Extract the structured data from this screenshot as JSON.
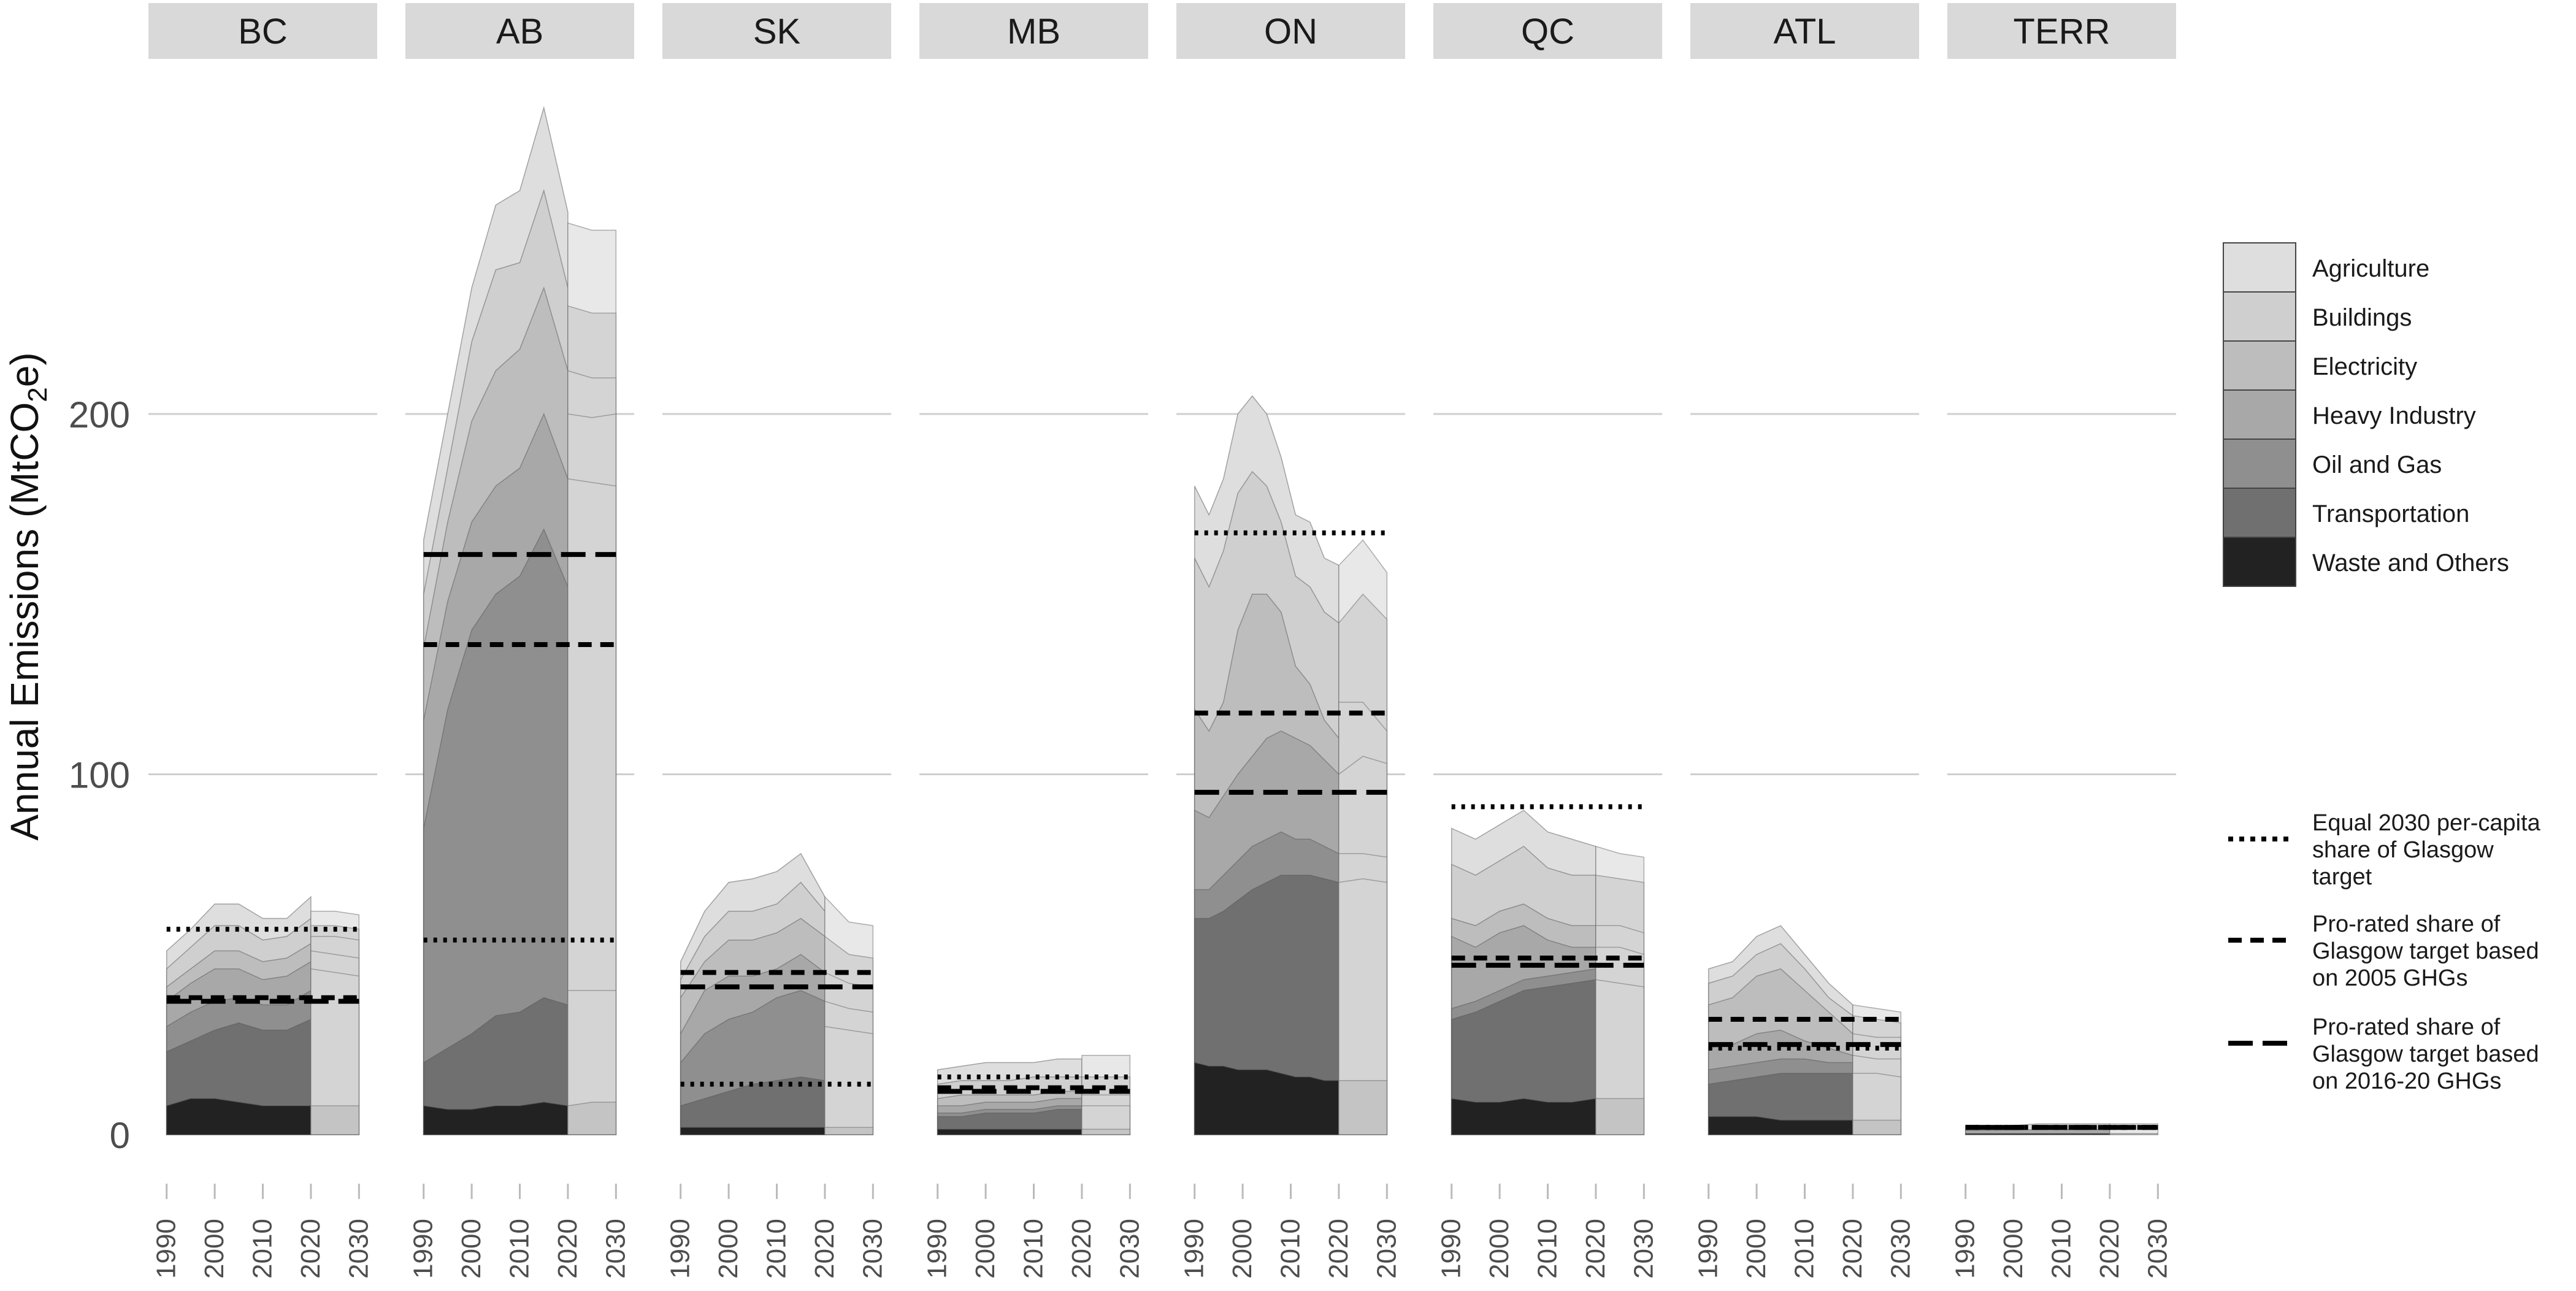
{
  "chart_data": {
    "type": "area",
    "ylabel": "Annual Emissions",
    "ylabel_unit": "(MtCO",
    "ylabel_unit_sub": "2",
    "ylabel_unit_end": "e)",
    "yticks": [
      0,
      100,
      200
    ],
    "ylim": [
      0,
      285
    ],
    "xlim": [
      1988,
      2032
    ],
    "xticks": [
      1990,
      2000,
      2010,
      2020,
      2030
    ],
    "grid": true,
    "legend_position": "right",
    "colors": {
      "Waste and Others": "#222222",
      "Transportation": "#707070",
      "Oil and Gas": "#8f8f8f",
      "Heavy Industry": "#a8a8a8",
      "Electricity": "#bdbdbd",
      "Buildings": "#cfcfcf",
      "Agriculture": "#dedede",
      "projection_top": "#e8e8e8",
      "projection_base": "#c4c4c4",
      "strip": "#d9d9d9",
      "grid": "#cfcfcf"
    },
    "categories": [
      "Waste and Others",
      "Transportation",
      "Oil and Gas",
      "Heavy Industry",
      "Electricity",
      "Buildings",
      "Agriculture"
    ],
    "legend": {
      "sectors_order": [
        "Agriculture",
        "Buildings",
        "Electricity",
        "Heavy Industry",
        "Oil and Gas",
        "Transportation",
        "Waste and Others"
      ],
      "targets": [
        {
          "style": "dotted",
          "lines": [
            "Equal 2030 per-capita",
            "share of Glasgow",
            "target"
          ]
        },
        {
          "style": "dashed",
          "lines": [
            "Pro-rated share of",
            "Glasgow target based",
            "on 2005 GHGs"
          ]
        },
        {
          "style": "longdash",
          "lines": [
            "Pro-rated share of",
            "Glasgow target based",
            "on 2016-20 GHGs"
          ]
        }
      ]
    },
    "facets": [
      {
        "name": "BC",
        "history_years": [
          1990,
          1995,
          2000,
          2005,
          2010,
          2015,
          2020
        ],
        "history_totals": [
          51,
          57,
          64,
          64,
          60,
          60,
          66
        ],
        "history_bands": [
          [
            8,
            10,
            10,
            9,
            8,
            8,
            8
          ],
          [
            23,
            26,
            29,
            31,
            29,
            29,
            32
          ],
          [
            30,
            34,
            37,
            38,
            36,
            36,
            40
          ],
          [
            37,
            42,
            46,
            46,
            43,
            44,
            48
          ],
          [
            41,
            46,
            51,
            51,
            48,
            49,
            53
          ],
          [
            46,
            52,
            58,
            58,
            54,
            55,
            60
          ],
          [
            51,
            57,
            64,
            64,
            60,
            60,
            66
          ]
        ],
        "projection_years": [
          2020,
          2025,
          2030
        ],
        "projection_totals": [
          62,
          62,
          61
        ],
        "projection_bands": [
          [
            8,
            8,
            8
          ],
          [
            46,
            45,
            44
          ],
          [
            51,
            50,
            49
          ],
          [
            55,
            55,
            54
          ],
          [
            58,
            58,
            57
          ],
          [
            62,
            62,
            61
          ]
        ],
        "targets": {
          "dotted": 57,
          "dashed": 38,
          "longdash": 37
        }
      },
      {
        "name": "AB",
        "history_years": [
          1990,
          1995,
          2000,
          2005,
          2010,
          2015,
          2020
        ],
        "history_totals": [
          165,
          200,
          235,
          258,
          262,
          285,
          256
        ],
        "history_bands": [
          [
            8,
            7,
            7,
            8,
            8,
            9,
            8
          ],
          [
            20,
            24,
            28,
            33,
            34,
            38,
            36
          ],
          [
            85,
            118,
            140,
            150,
            155,
            168,
            152
          ],
          [
            115,
            148,
            170,
            180,
            185,
            200,
            182
          ],
          [
            135,
            170,
            198,
            212,
            218,
            235,
            212
          ],
          [
            150,
            185,
            220,
            240,
            242,
            262,
            235
          ],
          [
            165,
            200,
            235,
            258,
            262,
            285,
            256
          ]
        ],
        "projection_years": [
          2020,
          2025,
          2030
        ],
        "projection_totals": [
          253,
          251,
          251
        ],
        "projection_bands": [
          [
            8,
            9,
            9
          ],
          [
            40,
            40,
            40
          ],
          [
            182,
            181,
            180
          ],
          [
            200,
            199,
            200
          ],
          [
            212,
            210,
            210
          ],
          [
            230,
            228,
            228
          ],
          [
            253,
            251,
            251
          ]
        ],
        "targets": {
          "dotted": 54,
          "dashed": 136,
          "longdash": 161
        }
      },
      {
        "name": "SK",
        "history_years": [
          1990,
          1995,
          2000,
          2005,
          2010,
          2015,
          2020
        ],
        "history_totals": [
          48,
          62,
          70,
          71,
          73,
          78,
          66
        ],
        "history_bands": [
          [
            2,
            2,
            2,
            2,
            2,
            2,
            2
          ],
          [
            8,
            10,
            12,
            14,
            15,
            16,
            15
          ],
          [
            20,
            28,
            32,
            34,
            38,
            40,
            37
          ],
          [
            28,
            40,
            44,
            44,
            46,
            50,
            45
          ],
          [
            38,
            48,
            54,
            54,
            56,
            60,
            55
          ],
          [
            43,
            55,
            62,
            62,
            64,
            70,
            62
          ],
          [
            48,
            62,
            70,
            71,
            73,
            78,
            66
          ]
        ],
        "projection_years": [
          2020,
          2025,
          2030
        ],
        "projection_totals": [
          66,
          59,
          58
        ],
        "projection_bands": [
          [
            2,
            2,
            2
          ],
          [
            30,
            29,
            28
          ],
          [
            37,
            35,
            34
          ],
          [
            45,
            42,
            41
          ],
          [
            55,
            50,
            49
          ],
          [
            66,
            59,
            58
          ]
        ],
        "targets": {
          "dotted": 14,
          "dashed": 45,
          "longdash": 41
        }
      },
      {
        "name": "MB",
        "history_years": [
          1990,
          1995,
          2000,
          2005,
          2010,
          2015,
          2020
        ],
        "history_totals": [
          18,
          19,
          20,
          20,
          20,
          21,
          21
        ],
        "history_bands": [
          [
            1.5,
            1.5,
            1.5,
            1.5,
            1.5,
            1.5,
            1.5
          ],
          [
            5,
            5,
            6,
            6,
            6,
            7,
            7
          ],
          [
            6,
            6,
            7,
            7,
            7,
            8,
            8
          ],
          [
            8,
            8,
            9,
            9,
            9,
            10,
            10
          ],
          [
            10,
            11,
            11,
            11,
            11,
            12,
            12
          ],
          [
            14,
            15,
            15,
            15,
            16,
            16,
            16
          ],
          [
            18,
            19,
            20,
            20,
            20,
            21,
            21
          ]
        ],
        "projection_years": [
          2020,
          2025,
          2030
        ],
        "projection_totals": [
          22,
          22,
          22
        ],
        "projection_bands": [
          [
            1.5,
            1.5,
            1.5
          ],
          [
            8,
            8,
            8
          ],
          [
            11,
            11,
            11
          ],
          [
            16,
            16,
            16
          ],
          [
            22,
            22,
            22
          ]
        ],
        "targets": {
          "dotted": 16,
          "dashed": 13,
          "longdash": 12
        }
      },
      {
        "name": "ON",
        "history_years": [
          1990,
          1993,
          1996,
          1999,
          2002,
          2005,
          2008,
          2011,
          2014,
          2017,
          2020
        ],
        "history_totals": [
          180,
          172,
          182,
          200,
          205,
          200,
          188,
          172,
          170,
          160,
          158
        ],
        "history_bands": [
          [
            20,
            19,
            19,
            18,
            18,
            18,
            17,
            16,
            16,
            15,
            15
          ],
          [
            60,
            60,
            62,
            65,
            68,
            70,
            72,
            72,
            72,
            71,
            70
          ],
          [
            68,
            68,
            72,
            76,
            80,
            82,
            84,
            82,
            82,
            80,
            78
          ],
          [
            90,
            88,
            94,
            100,
            105,
            110,
            112,
            110,
            108,
            104,
            100
          ],
          [
            118,
            112,
            120,
            140,
            150,
            150,
            145,
            130,
            125,
            115,
            110
          ],
          [
            160,
            152,
            162,
            178,
            184,
            180,
            170,
            155,
            152,
            145,
            142
          ],
          [
            180,
            172,
            182,
            200,
            205,
            200,
            188,
            172,
            170,
            160,
            158
          ]
        ],
        "projection_years": [
          2020,
          2025,
          2030
        ],
        "projection_totals": [
          158,
          165,
          156
        ],
        "projection_bands": [
          [
            15,
            15,
            15
          ],
          [
            70,
            71,
            70
          ],
          [
            78,
            78,
            77
          ],
          [
            100,
            105,
            103
          ],
          [
            120,
            120,
            112
          ],
          [
            142,
            150,
            143
          ],
          [
            158,
            165,
            156
          ]
        ],
        "targets": {
          "dotted": 167,
          "dashed": 117,
          "longdash": 95
        }
      },
      {
        "name": "QC",
        "history_years": [
          1990,
          1995,
          2000,
          2005,
          2010,
          2015,
          2020
        ],
        "history_totals": [
          85,
          82,
          86,
          90,
          84,
          82,
          80
        ],
        "history_bands": [
          [
            10,
            9,
            9,
            10,
            9,
            9,
            10
          ],
          [
            32,
            34,
            37,
            40,
            41,
            42,
            43
          ],
          [
            35,
            37,
            40,
            43,
            44,
            45,
            46
          ],
          [
            55,
            52,
            56,
            58,
            54,
            52,
            52
          ],
          [
            60,
            58,
            62,
            64,
            60,
            58,
            58
          ],
          [
            75,
            72,
            76,
            80,
            74,
            72,
            72
          ],
          [
            85,
            82,
            86,
            90,
            84,
            82,
            80
          ]
        ],
        "projection_years": [
          2020,
          2025,
          2030
        ],
        "projection_totals": [
          80,
          78,
          77
        ],
        "projection_bands": [
          [
            10,
            10,
            10
          ],
          [
            43,
            42,
            41
          ],
          [
            52,
            52,
            50
          ],
          [
            58,
            58,
            56
          ],
          [
            72,
            71,
            70
          ],
          [
            80,
            78,
            77
          ]
        ],
        "targets": {
          "dotted": 91,
          "dashed": 49,
          "longdash": 47
        }
      },
      {
        "name": "ATL",
        "history_years": [
          1990,
          1995,
          2000,
          2005,
          2010,
          2015,
          2020
        ],
        "history_totals": [
          46,
          48,
          55,
          58,
          50,
          42,
          36
        ],
        "history_bands": [
          [
            5,
            5,
            5,
            4,
            4,
            4,
            4
          ],
          [
            14,
            15,
            16,
            17,
            17,
            17,
            17
          ],
          [
            18,
            19,
            20,
            21,
            21,
            20,
            20
          ],
          [
            24,
            25,
            28,
            29,
            26,
            24,
            22
          ],
          [
            36,
            38,
            44,
            46,
            40,
            34,
            28
          ],
          [
            42,
            44,
            50,
            53,
            46,
            38,
            33
          ],
          [
            46,
            48,
            55,
            58,
            50,
            42,
            36
          ]
        ],
        "projection_years": [
          2020,
          2025,
          2030
        ],
        "projection_totals": [
          36,
          35,
          34
        ],
        "projection_bands": [
          [
            4,
            4,
            4
          ],
          [
            17,
            17,
            16
          ],
          [
            22,
            21,
            21
          ],
          [
            28,
            27,
            27
          ],
          [
            33,
            32,
            31
          ],
          [
            36,
            35,
            34
          ]
        ],
        "targets": {
          "dotted": 24,
          "dashed": 32,
          "longdash": 25
        }
      },
      {
        "name": "TERR",
        "history_years": [
          1990,
          1995,
          2000,
          2005,
          2010,
          2015,
          2020
        ],
        "history_totals": [
          2.5,
          2.5,
          2.5,
          3,
          3,
          3,
          3
        ],
        "history_bands": [
          [
            0.3,
            0.3,
            0.3,
            0.3,
            0.3,
            0.3,
            0.3
          ],
          [
            1.2,
            1.2,
            1.3,
            1.4,
            1.4,
            1.4,
            1.4
          ],
          [
            2.5,
            2.5,
            2.5,
            3,
            3,
            3,
            3
          ]
        ],
        "projection_years": [
          2020,
          2025,
          2030
        ],
        "projection_totals": [
          3,
          3,
          3
        ],
        "projection_bands": [
          [
            0.3,
            0.3,
            0.3
          ],
          [
            3,
            3,
            3
          ]
        ],
        "targets": {
          "dotted": 2,
          "dashed": 2,
          "longdash": 2
        }
      }
    ]
  }
}
